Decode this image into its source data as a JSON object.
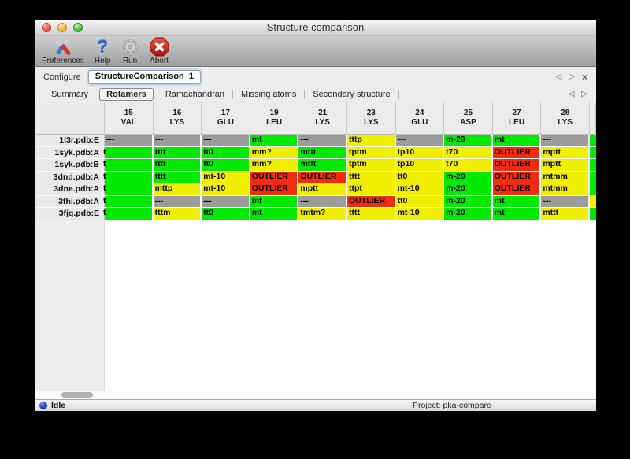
{
  "window": {
    "title": "Structure comparison"
  },
  "toolbar": {
    "items": [
      {
        "label": "Preferences",
        "icon": "preferences-tools-icon"
      },
      {
        "label": "Help",
        "icon": "help-question-icon"
      },
      {
        "label": "Run",
        "icon": "run-gear-icon"
      },
      {
        "label": "Abort",
        "icon": "abort-icon"
      }
    ]
  },
  "configure": {
    "label": "Configure",
    "value": "StructureComparison_1",
    "nav": {
      "prev": "◁",
      "next": "▷",
      "close": "×"
    }
  },
  "tabs": {
    "items": [
      "Summary",
      "Rotamers",
      "Ramachandran",
      "Missing atoms",
      "Secondary structure"
    ],
    "selected": "Rotamers",
    "nav": {
      "prev": "◁",
      "next": "▷"
    }
  },
  "colors": {
    "green": "#00e900",
    "yellow": "#f0ef00",
    "red": "#f12c12",
    "gray": "#9b9b9b"
  },
  "table": {
    "columns": [
      {
        "num": "15",
        "res": "VAL"
      },
      {
        "num": "16",
        "res": "LYS"
      },
      {
        "num": "17",
        "res": "GLU"
      },
      {
        "num": "19",
        "res": "LEU"
      },
      {
        "num": "21",
        "res": "LYS"
      },
      {
        "num": "23",
        "res": "LYS"
      },
      {
        "num": "24",
        "res": "GLU"
      },
      {
        "num": "25",
        "res": "ASP"
      },
      {
        "num": "27",
        "res": "LEU"
      },
      {
        "num": "28",
        "res": "LYS"
      }
    ],
    "rows": [
      {
        "label": "1l3r.pdb:E",
        "edge": "green",
        "cells": [
          [
            "---",
            "gray"
          ],
          [
            "---",
            "gray"
          ],
          [
            "---",
            "gray"
          ],
          [
            "mt",
            "green"
          ],
          [
            "---",
            "gray"
          ],
          [
            "tttp",
            "yellow"
          ],
          [
            "---",
            "gray"
          ],
          [
            "m-20",
            "green"
          ],
          [
            "mt",
            "green"
          ],
          [
            "---",
            "gray"
          ]
        ]
      },
      {
        "label": "1syk.pdb:A",
        "edge": "green",
        "cells": [
          [
            "t",
            "green",
            "clip"
          ],
          [
            "tttt",
            "green"
          ],
          [
            "tt0",
            "green"
          ],
          [
            "mm?",
            "yellow"
          ],
          [
            "mttt",
            "green"
          ],
          [
            "tptm",
            "yellow"
          ],
          [
            "tp10",
            "yellow"
          ],
          [
            "t70",
            "yellow"
          ],
          [
            "OUTLIER",
            "red"
          ],
          [
            "mptt",
            "yellow"
          ]
        ]
      },
      {
        "label": "1syk.pdb:B",
        "edge": "green",
        "cells": [
          [
            "t",
            "green",
            "clip"
          ],
          [
            "tttt",
            "green"
          ],
          [
            "tt0",
            "green"
          ],
          [
            "mm?",
            "yellow"
          ],
          [
            "mttt",
            "green"
          ],
          [
            "tptm",
            "yellow"
          ],
          [
            "tp10",
            "yellow"
          ],
          [
            "t70",
            "yellow"
          ],
          [
            "OUTLIER",
            "red"
          ],
          [
            "mptt",
            "yellow"
          ]
        ]
      },
      {
        "label": "3dnd.pdb:A",
        "edge": "green",
        "cells": [
          [
            "t",
            "green",
            "clip"
          ],
          [
            "tttt",
            "green"
          ],
          [
            "mt-10",
            "yellow"
          ],
          [
            "OUTLIER",
            "red"
          ],
          [
            "OUTLIER",
            "red"
          ],
          [
            "tttt",
            "yellow"
          ],
          [
            "tt0",
            "yellow"
          ],
          [
            "m-20",
            "green"
          ],
          [
            "OUTLIER",
            "red"
          ],
          [
            "mtmm",
            "yellow"
          ]
        ]
      },
      {
        "label": "3dne.pdb:A",
        "edge": "green",
        "cells": [
          [
            "t",
            "green",
            "clip"
          ],
          [
            "mttp",
            "yellow"
          ],
          [
            "mt-10",
            "yellow"
          ],
          [
            "OUTLIER",
            "red"
          ],
          [
            "mptt",
            "yellow"
          ],
          [
            "ttpt",
            "yellow"
          ],
          [
            "mt-10",
            "yellow"
          ],
          [
            "m-20",
            "green"
          ],
          [
            "OUTLIER",
            "red"
          ],
          [
            "mtmm",
            "yellow"
          ]
        ]
      },
      {
        "label": "3fhi.pdb:A",
        "edge": "yellow",
        "cells": [
          [
            "t",
            "green",
            "clip"
          ],
          [
            "---",
            "gray"
          ],
          [
            "---",
            "gray"
          ],
          [
            "mt",
            "green"
          ],
          [
            "---",
            "gray"
          ],
          [
            "OUTLIER",
            "red"
          ],
          [
            "tt0",
            "yellow"
          ],
          [
            "m-20",
            "green"
          ],
          [
            "mt",
            "green"
          ],
          [
            "---",
            "gray"
          ]
        ]
      },
      {
        "label": "3fjq.pdb:E",
        "edge": "green",
        "cells": [
          [
            "t",
            "green",
            "clip"
          ],
          [
            "tttm",
            "yellow"
          ],
          [
            "tt0",
            "green"
          ],
          [
            "mt",
            "green"
          ],
          [
            "tmtm?",
            "yellow"
          ],
          [
            "tttt",
            "yellow"
          ],
          [
            "mt-10",
            "yellow"
          ],
          [
            "m-20",
            "green"
          ],
          [
            "mt",
            "green"
          ],
          [
            "mttt",
            "yellow"
          ]
        ]
      }
    ]
  },
  "statusbar": {
    "status": "Idle",
    "project": "Project: pka-compare"
  }
}
